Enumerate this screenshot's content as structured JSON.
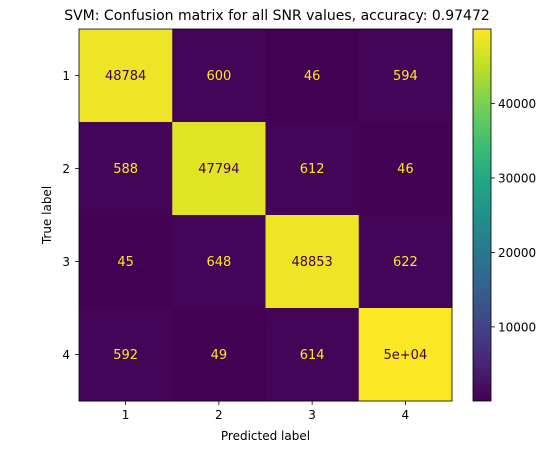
{
  "chart_data": {
    "type": "heatmap",
    "title": "SVM: Confusion matrix for all SNR values, accuracy: 0.97472",
    "xlabel": "Predicted label",
    "ylabel": "True label",
    "x_categories": [
      "1",
      "2",
      "3",
      "4"
    ],
    "y_categories": [
      "1",
      "2",
      "3",
      "4"
    ],
    "values": [
      [
        48784,
        600,
        46,
        594
      ],
      [
        588,
        47794,
        612,
        46
      ],
      [
        45,
        648,
        48853,
        622
      ],
      [
        592,
        49,
        614,
        50000
      ]
    ],
    "cell_labels": [
      [
        "48784",
        "600",
        "46",
        "594"
      ],
      [
        "588",
        "47794",
        "612",
        "46"
      ],
      [
        "45",
        "648",
        "48853",
        "622"
      ],
      [
        "592",
        "49",
        "614",
        "5e+04"
      ]
    ],
    "colormap": "viridis",
    "colorbar": {
      "range": [
        45,
        50000
      ],
      "ticks": [
        10000,
        20000,
        30000,
        40000
      ],
      "tick_labels": [
        "10000",
        "20000",
        "30000",
        "40000"
      ]
    },
    "grid": false,
    "colors": {
      "low_cell": "#440154",
      "high_cell": "#fde725",
      "light_text": "#fde725",
      "dark_text": "#440154"
    }
  }
}
